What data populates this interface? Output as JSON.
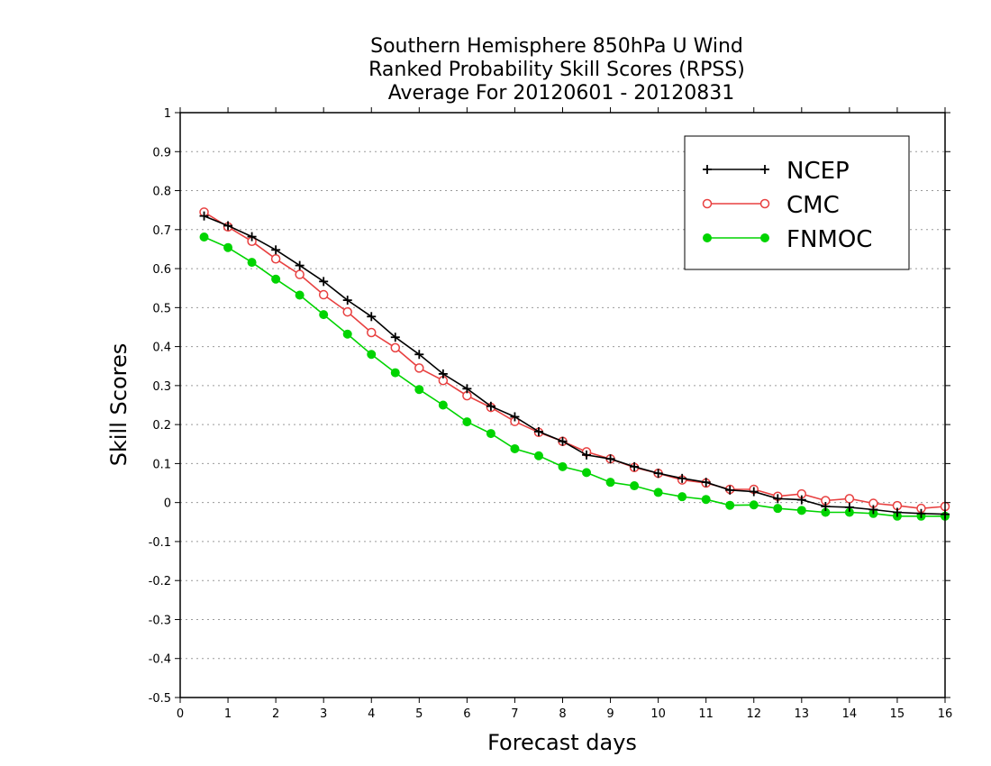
{
  "chart_data": {
    "type": "line",
    "title_lines": [
      "Southern Hemisphere 850hPa U Wind",
      "Ranked Probability Skill Scores (RPSS)",
      "Average For 20120601 - 20120831"
    ],
    "xlabel": "Forecast days",
    "ylabel": "Skill Scores",
    "xlim": [
      0,
      16
    ],
    "ylim": [
      -0.5,
      1
    ],
    "x_ticks": [
      0,
      1,
      2,
      3,
      4,
      5,
      6,
      7,
      8,
      9,
      10,
      11,
      12,
      13,
      14,
      15,
      16
    ],
    "x_tick_labels": [
      "0",
      "1",
      "2",
      "3",
      "4",
      "5",
      "6",
      "7",
      "8",
      "9",
      "10",
      "11",
      "12",
      "13",
      "14",
      "15",
      "16"
    ],
    "y_ticks": [
      -0.5,
      -0.4,
      -0.3,
      -0.2,
      -0.1,
      0,
      0.1,
      0.2,
      0.3,
      0.4,
      0.5,
      0.6,
      0.7,
      0.8,
      0.9,
      1
    ],
    "y_tick_labels": [
      "-0.5",
      "-0.4",
      "-0.3",
      "-0.2",
      "-0.1",
      "0",
      "0.1",
      "0.2",
      "0.3",
      "0.4",
      "0.5",
      "0.6",
      "0.7",
      "0.8",
      "0.9",
      "1"
    ],
    "grid": true,
    "legend_position": "top-right",
    "x": [
      0.5,
      1,
      1.5,
      2,
      2.5,
      3,
      3.5,
      4,
      4.5,
      5,
      5.5,
      6,
      6.5,
      7,
      7.5,
      8,
      8.5,
      9,
      9.5,
      10,
      10.5,
      11,
      11.5,
      12,
      12.5,
      13,
      13.5,
      14,
      14.5,
      15,
      15.5,
      16
    ],
    "series": [
      {
        "name": "NCEP",
        "color": "#000000",
        "marker": "plus",
        "values": [
          0.735,
          0.71,
          0.682,
          0.648,
          0.608,
          0.567,
          0.519,
          0.477,
          0.424,
          0.38,
          0.33,
          0.292,
          0.247,
          0.22,
          0.182,
          0.157,
          0.122,
          0.112,
          0.092,
          0.075,
          0.062,
          0.052,
          0.032,
          0.028,
          0.01,
          0.007,
          -0.01,
          -0.012,
          -0.018,
          -0.025,
          -0.028,
          -0.03
        ]
      },
      {
        "name": "CMC",
        "color": "#e84040",
        "marker": "open-circle",
        "values": [
          0.745,
          0.707,
          0.67,
          0.625,
          0.585,
          0.533,
          0.489,
          0.436,
          0.397,
          0.345,
          0.313,
          0.274,
          0.244,
          0.208,
          0.18,
          0.157,
          0.13,
          0.112,
          0.09,
          0.075,
          0.058,
          0.05,
          0.034,
          0.034,
          0.016,
          0.022,
          0.005,
          0.01,
          -0.002,
          -0.008,
          -0.015,
          -0.01
        ]
      },
      {
        "name": "FNMOC",
        "color": "#00d400",
        "marker": "filled-circle",
        "values": [
          0.681,
          0.654,
          0.616,
          0.573,
          0.532,
          0.482,
          0.432,
          0.38,
          0.333,
          0.29,
          0.25,
          0.207,
          0.177,
          0.138,
          0.12,
          0.092,
          0.077,
          0.052,
          0.043,
          0.026,
          0.015,
          0.008,
          -0.007,
          -0.006,
          -0.015,
          -0.02,
          -0.025,
          -0.025,
          -0.028,
          -0.035,
          -0.035,
          -0.035
        ]
      }
    ]
  }
}
